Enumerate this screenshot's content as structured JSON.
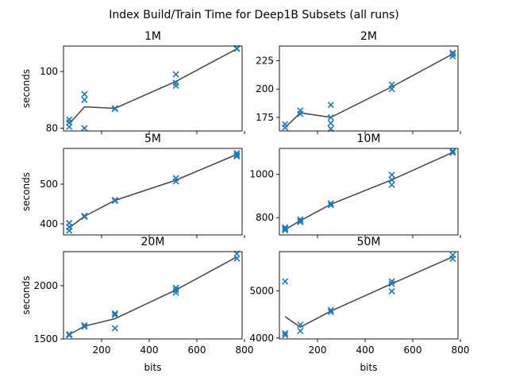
{
  "figure": {
    "suptitle": "Index Build/Train Time for Deep1B Subsets (all runs)"
  },
  "chart_data": [
    {
      "type": "scatter",
      "title": "1M",
      "xlabel": "",
      "ylabel": "seconds",
      "xlim": [
        40,
        790
      ],
      "ylim": [
        79,
        109
      ],
      "xticks": [
        200,
        400,
        600,
        800
      ],
      "show_xticklabels": false,
      "yticks": [
        80,
        100
      ],
      "series": [
        {
          "values": [
            [
              64,
              83
            ],
            [
              64,
              82
            ],
            [
              64,
              80.5
            ],
            [
              128,
              92
            ],
            [
              128,
              90
            ],
            [
              128,
              80
            ],
            [
              256,
              87
            ],
            [
              256,
              86.8
            ],
            [
              512,
              99
            ],
            [
              512,
              96
            ],
            [
              512,
              95
            ],
            [
              768,
              108
            ],
            [
              768,
              108.2
            ]
          ]
        },
        {
          "values": [
            [
              64,
              81.5
            ],
            [
              128,
              87.5
            ],
            [
              256,
              87
            ],
            [
              512,
              96.5
            ],
            [
              768,
              108
            ]
          ]
        }
      ]
    },
    {
      "type": "scatter",
      "title": "2M",
      "xlabel": "",
      "ylabel": "",
      "xlim": [
        40,
        790
      ],
      "ylim": [
        163,
        238
      ],
      "xticks": [
        200,
        400,
        600,
        800
      ],
      "show_xticklabels": false,
      "yticks": [
        175,
        200,
        225
      ],
      "series": [
        {
          "values": [
            [
              64,
              169
            ],
            [
              64,
              166
            ],
            [
              128,
              181
            ],
            [
              128,
              178
            ],
            [
              256,
              186
            ],
            [
              256,
              175
            ],
            [
              256,
              170
            ],
            [
              256,
              165
            ],
            [
              512,
              204
            ],
            [
              512,
              200
            ],
            [
              768,
              232
            ],
            [
              768,
              231
            ],
            [
              768,
              229
            ]
          ]
        },
        {
          "values": [
            [
              64,
              166
            ],
            [
              128,
              179
            ],
            [
              256,
              175
            ],
            [
              512,
              202
            ],
            [
              768,
              231
            ]
          ]
        }
      ]
    },
    {
      "type": "scatter",
      "title": "5M",
      "xlabel": "",
      "ylabel": "seconds",
      "xlim": [
        40,
        790
      ],
      "ylim": [
        372,
        590
      ],
      "xticks": [
        200,
        400,
        600,
        800
      ],
      "show_xticklabels": false,
      "yticks": [
        400,
        500
      ],
      "series": [
        {
          "values": [
            [
              64,
              402
            ],
            [
              64,
              392
            ],
            [
              64,
              383
            ],
            [
              128,
              420
            ],
            [
              128,
              418
            ],
            [
              256,
              460
            ],
            [
              256,
              458
            ],
            [
              512,
              515
            ],
            [
              512,
              507
            ],
            [
              768,
              578
            ],
            [
              768,
              573
            ],
            [
              768,
              570
            ]
          ]
        },
        {
          "values": [
            [
              64,
              390
            ],
            [
              128,
              419
            ],
            [
              256,
              459
            ],
            [
              512,
              510
            ],
            [
              768,
              575
            ]
          ]
        }
      ]
    },
    {
      "type": "scatter",
      "title": "10M",
      "xlabel": "",
      "ylabel": "",
      "xlim": [
        40,
        790
      ],
      "ylim": [
        720,
        1120
      ],
      "xticks": [
        200,
        400,
        600,
        800
      ],
      "show_xticklabels": false,
      "yticks": [
        800,
        1000
      ],
      "series": [
        {
          "values": [
            [
              64,
              755
            ],
            [
              64,
              748
            ],
            [
              64,
              742
            ],
            [
              128,
              792
            ],
            [
              128,
              785
            ],
            [
              128,
              780
            ],
            [
              256,
              866
            ],
            [
              256,
              858
            ],
            [
              512,
              998
            ],
            [
              512,
              975
            ],
            [
              512,
              952
            ],
            [
              768,
              1108
            ],
            [
              768,
              1100
            ]
          ]
        },
        {
          "values": [
            [
              64,
              745
            ],
            [
              128,
              786
            ],
            [
              256,
              862
            ],
            [
              512,
              975
            ],
            [
              768,
              1102
            ]
          ]
        }
      ]
    },
    {
      "type": "scatter",
      "title": "20M",
      "xlabel": "bits",
      "ylabel": "seconds",
      "xlim": [
        40,
        790
      ],
      "ylim": [
        1500,
        2320
      ],
      "xticks": [
        200,
        400,
        600,
        800
      ],
      "show_xticklabels": true,
      "yticks": [
        1500,
        2000
      ],
      "series": [
        {
          "values": [
            [
              64,
              1545
            ],
            [
              64,
              1535
            ],
            [
              128,
              1628
            ],
            [
              128,
              1615
            ],
            [
              256,
              1740
            ],
            [
              256,
              1725
            ],
            [
              256,
              1600
            ],
            [
              512,
              1980
            ],
            [
              512,
              1960
            ],
            [
              512,
              1935
            ],
            [
              768,
              2300
            ],
            [
              768,
              2255
            ]
          ]
        },
        {
          "values": [
            [
              64,
              1540
            ],
            [
              128,
              1620
            ],
            [
              256,
              1690
            ],
            [
              512,
              1960
            ],
            [
              768,
              2270
            ]
          ]
        }
      ]
    },
    {
      "type": "scatter",
      "title": "50M",
      "xlabel": "bits",
      "ylabel": "",
      "xlim": [
        40,
        790
      ],
      "ylim": [
        3980,
        5830
      ],
      "xticks": [
        200,
        400,
        600,
        800
      ],
      "show_xticklabels": true,
      "yticks": [
        4000,
        5000
      ],
      "series": [
        {
          "values": [
            [
              64,
              5200
            ],
            [
              64,
              4100
            ],
            [
              64,
              4060
            ],
            [
              128,
              4280
            ],
            [
              128,
              4150
            ],
            [
              256,
              4590
            ],
            [
              256,
              4550
            ],
            [
              512,
              5200
            ],
            [
              512,
              5150
            ],
            [
              512,
              4990
            ],
            [
              768,
              5760
            ],
            [
              768,
              5680
            ]
          ]
        },
        {
          "values": [
            [
              64,
              4450
            ],
            [
              128,
              4230
            ],
            [
              256,
              4570
            ],
            [
              512,
              5150
            ],
            [
              768,
              5720
            ]
          ]
        }
      ]
    }
  ],
  "colors": {
    "marker": "#1f77b4",
    "line": "#444444",
    "axes": "#000000"
  }
}
